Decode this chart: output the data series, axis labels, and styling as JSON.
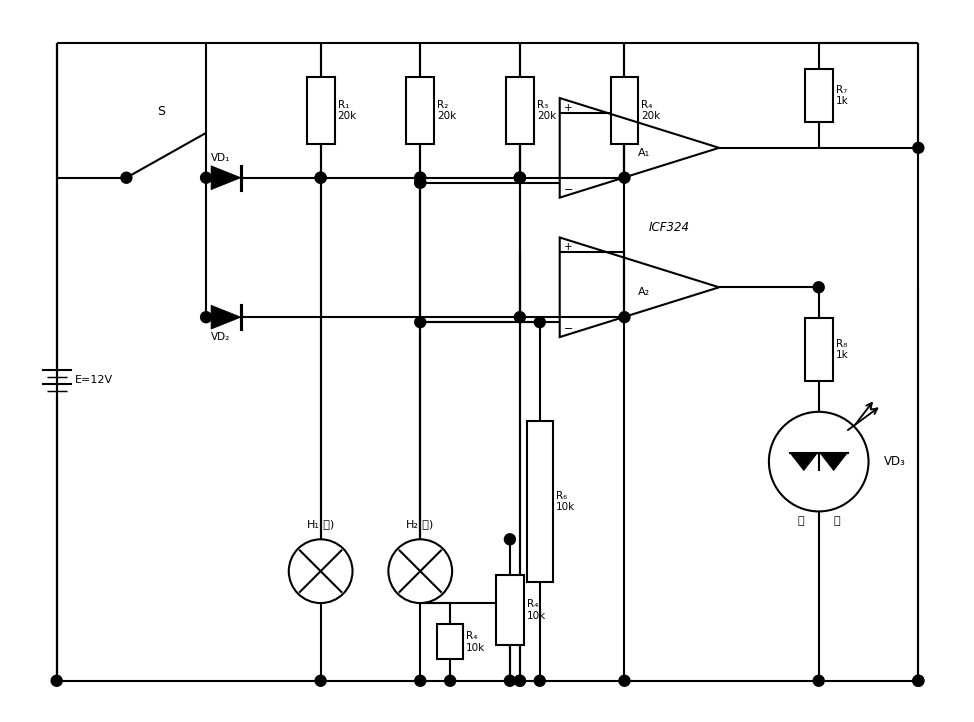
{
  "bg_color": "#ffffff",
  "line_color": "#000000",
  "lw": 1.5,
  "fig_w": 9.74,
  "fig_h": 7.22,
  "components": {
    "battery_label": "E=12V",
    "switch_label": "S",
    "R1_label": "R₁\n20k",
    "R2_label": "R₂\n20k",
    "R3_label": "R₃\n20k",
    "R4top_label": "R₄\n20k",
    "R4bot_label": "R₄\n10k",
    "R6_label": "R₆\n10k",
    "R7_label": "R₇\n1k",
    "R8_label": "R₈\n1k",
    "VD1_label": "VD₁",
    "VD2_label": "VD₂",
    "VD3_label": "VD₃",
    "A1_label": "A₁",
    "A2_label": "A₂",
    "ICF324_label": "ICF324",
    "H1_label": "H₁(左)",
    "H2_label": "H₂(右)",
    "red_label": "红",
    "green_label": "绿"
  }
}
